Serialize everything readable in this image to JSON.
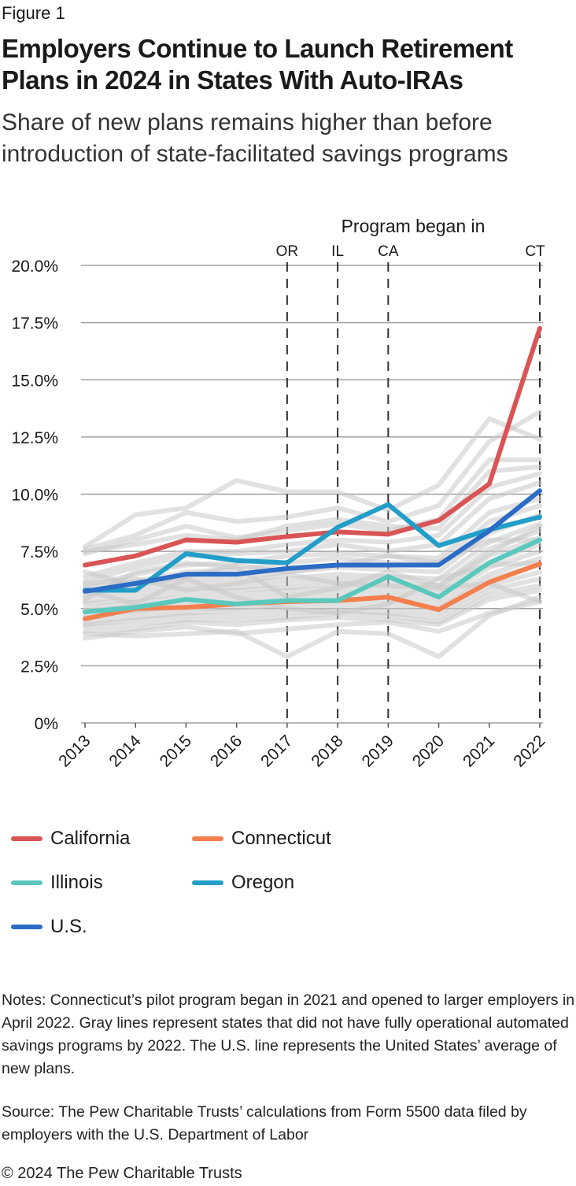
{
  "figure_label": "Figure 1",
  "title": "Employers Continue to Launch Retirement Plans in 2024 in States With Auto-IRAs",
  "subtitle": "Share of new plans remains higher than before introduction of state-facilitated savings programs",
  "chart_data": {
    "type": "line",
    "x": [
      2013,
      2014,
      2015,
      2016,
      2017,
      2018,
      2019,
      2020,
      2021,
      2022
    ],
    "ylim": [
      0,
      20
    ],
    "yticks": [
      "0%",
      "2.5%",
      "5.0%",
      "7.5%",
      "10.0%",
      "12.5%",
      "15.0%",
      "17.5%",
      "20.0%"
    ],
    "grid": true,
    "annotation_title": "Program began in",
    "program_markers": [
      {
        "label": "OR",
        "year": 2017
      },
      {
        "label": "IL",
        "year": 2018
      },
      {
        "label": "CA",
        "year": 2019
      },
      {
        "label": "CT",
        "year": 2022
      }
    ],
    "series": [
      {
        "name": "California",
        "color": "#d95555",
        "values": [
          6.9,
          7.3,
          8.0,
          7.9,
          8.15,
          8.35,
          8.25,
          8.85,
          10.45,
          17.25
        ]
      },
      {
        "name": "Connecticut",
        "color": "#f47f4e",
        "values": [
          4.55,
          5.0,
          5.05,
          5.2,
          5.3,
          5.35,
          5.5,
          4.95,
          6.15,
          6.95
        ]
      },
      {
        "name": "Illinois",
        "color": "#5bc8bd",
        "values": [
          4.85,
          5.05,
          5.4,
          5.2,
          5.35,
          5.35,
          6.4,
          5.5,
          7.0,
          8.0
        ]
      },
      {
        "name": "Oregon",
        "color": "#229ec8",
        "values": [
          5.8,
          5.8,
          7.4,
          7.1,
          7.0,
          8.55,
          9.55,
          7.75,
          8.45,
          9.0
        ]
      },
      {
        "name": "U.S.",
        "color": "#2b6cc4",
        "values": [
          5.75,
          6.1,
          6.5,
          6.5,
          6.75,
          6.9,
          6.9,
          6.9,
          8.4,
          10.15
        ]
      }
    ],
    "other_states_color": "#c8c8c8",
    "other_states": [
      [
        7.7,
        9.1,
        9.4,
        10.6,
        10.1,
        10.1,
        9.3,
        10.4,
        13.3,
        12.4
      ],
      [
        7.6,
        8.2,
        9.2,
        8.8,
        9.0,
        9.4,
        8.8,
        9.5,
        12.3,
        13.6
      ],
      [
        7.4,
        8.0,
        8.6,
        8.1,
        8.4,
        8.7,
        8.4,
        8.9,
        11.5,
        11.5
      ],
      [
        7.5,
        7.8,
        8.2,
        8.0,
        8.6,
        8.9,
        8.6,
        8.5,
        11.0,
        11.2
      ],
      [
        6.4,
        7.0,
        7.5,
        7.5,
        7.8,
        8.0,
        7.9,
        8.2,
        10.3,
        10.9
      ],
      [
        6.2,
        6.8,
        7.3,
        7.4,
        7.5,
        7.8,
        7.5,
        7.8,
        9.8,
        10.5
      ],
      [
        6.0,
        6.5,
        6.9,
        7.0,
        7.3,
        7.4,
        7.3,
        7.2,
        9.2,
        9.8
      ],
      [
        5.9,
        6.2,
        6.6,
        6.7,
        7.0,
        7.2,
        7.0,
        7.0,
        8.8,
        9.5
      ],
      [
        5.6,
        6.0,
        6.3,
        6.3,
        6.6,
        6.8,
        6.7,
        6.6,
        8.3,
        9.1
      ],
      [
        5.5,
        5.8,
        6.1,
        6.1,
        6.3,
        6.5,
        6.4,
        6.3,
        7.9,
        8.7
      ],
      [
        5.3,
        5.6,
        5.9,
        5.9,
        6.1,
        6.3,
        6.2,
        6.0,
        7.6,
        8.4
      ],
      [
        5.2,
        5.4,
        5.7,
        5.8,
        5.9,
        6.1,
        6.0,
        5.8,
        7.3,
        8.1
      ],
      [
        5.0,
        5.3,
        5.5,
        5.6,
        5.8,
        5.9,
        5.8,
        5.6,
        7.0,
        7.8
      ],
      [
        4.9,
        5.1,
        5.3,
        5.4,
        5.6,
        5.7,
        5.6,
        5.4,
        6.8,
        7.5
      ],
      [
        4.7,
        4.9,
        5.1,
        5.2,
        5.4,
        5.5,
        5.4,
        5.2,
        6.5,
        7.2
      ],
      [
        4.6,
        4.8,
        5.0,
        5.0,
        5.2,
        5.3,
        5.2,
        5.0,
        6.3,
        6.9
      ],
      [
        4.4,
        4.6,
        4.8,
        4.9,
        5.0,
        5.1,
        5.0,
        4.8,
        6.0,
        6.6
      ],
      [
        4.3,
        4.5,
        4.7,
        4.7,
        4.8,
        4.9,
        4.8,
        4.6,
        5.8,
        6.3
      ],
      [
        4.2,
        4.3,
        4.5,
        4.5,
        4.6,
        4.8,
        4.7,
        4.4,
        5.6,
        6.0
      ],
      [
        4.0,
        4.1,
        4.4,
        4.3,
        4.5,
        4.6,
        4.5,
        4.3,
        5.4,
        5.8
      ],
      [
        3.9,
        3.8,
        3.9,
        4.0,
        2.9,
        4.0,
        3.9,
        2.9,
        4.7,
        5.5
      ],
      [
        3.7,
        4.0,
        4.2,
        3.9,
        4.1,
        4.3,
        4.4,
        4.0,
        4.8,
        5.3
      ],
      [
        5.8,
        5.2,
        6.3,
        5.5,
        5.0,
        4.8,
        5.2,
        6.3,
        6.9,
        7.0
      ],
      [
        6.1,
        6.3,
        5.8,
        6.1,
        6.5,
        6.1,
        6.0,
        5.9,
        6.1,
        5.3
      ],
      [
        5.4,
        6.6,
        7.0,
        6.8,
        5.5,
        5.9,
        6.6,
        6.0,
        7.4,
        8.6
      ],
      [
        6.6,
        6.0,
        6.4,
        6.9,
        6.6,
        6.9,
        7.3,
        7.0,
        8.0,
        8.0
      ]
    ]
  },
  "legend": [
    {
      "label": "California",
      "color": "#d95555"
    },
    {
      "label": "Connecticut",
      "color": "#f47f4e"
    },
    {
      "label": "Illinois",
      "color": "#5bc8bd"
    },
    {
      "label": "Oregon",
      "color": "#229ec8"
    },
    {
      "label": "U.S.",
      "color": "#2b6cc4"
    }
  ],
  "notes": "Notes: Connecticut’s pilot program began in 2021 and opened to larger employers in April 2022. Gray lines represent states that did not have fully operational automated savings programs by 2022. The U.S. line represents the United States’ average of new plans.",
  "source": "Source: The Pew Charitable Trusts’ calculations from Form 5500 data filed by employers with the U.S. Department of Labor",
  "copyright": "© 2024 The Pew Charitable Trusts"
}
